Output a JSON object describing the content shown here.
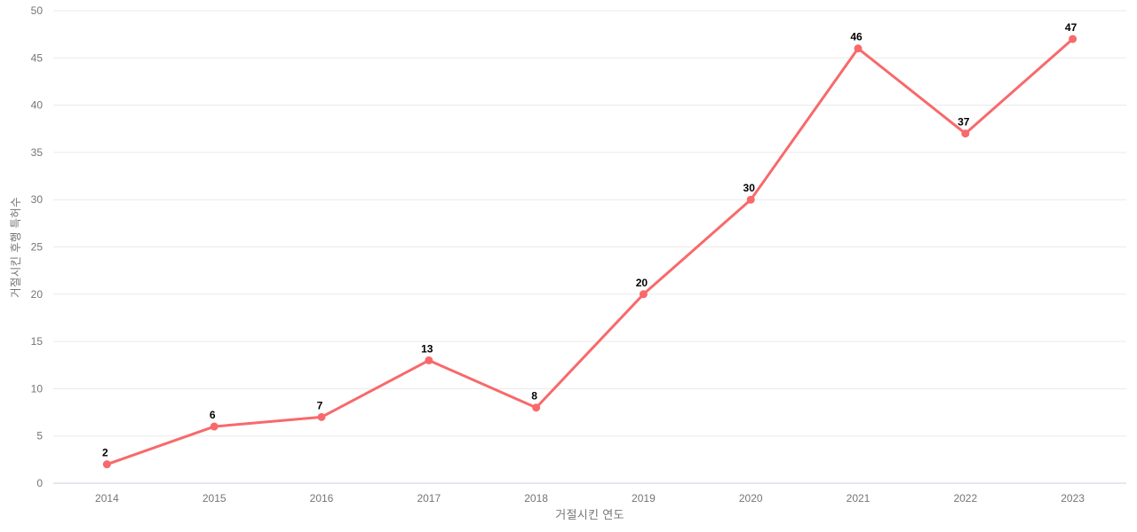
{
  "chart_data": {
    "type": "line",
    "categories": [
      "2014",
      "2015",
      "2016",
      "2017",
      "2018",
      "2019",
      "2020",
      "2021",
      "2022",
      "2023"
    ],
    "values": [
      2,
      6,
      7,
      13,
      8,
      20,
      30,
      46,
      37,
      47
    ],
    "title": "",
    "xlabel": "거절시킨 연도",
    "ylabel": "거절시킨 후행 특허수",
    "ylim": [
      0,
      50
    ],
    "ytick_step": 5,
    "yticks": [
      0,
      5,
      10,
      15,
      20,
      25,
      30,
      35,
      40,
      45,
      50
    ],
    "grid": true,
    "legend_position": "none",
    "data_labels": true,
    "colors": {
      "line": "#F8696B",
      "marker": "#F8696B",
      "gridline": "#EAEAEA",
      "axis_baseline": "#C9D0DC",
      "tick_label": "#757575",
      "axis_title": "#757575",
      "data_label": "#000000",
      "background": "#FFFFFF"
    }
  }
}
